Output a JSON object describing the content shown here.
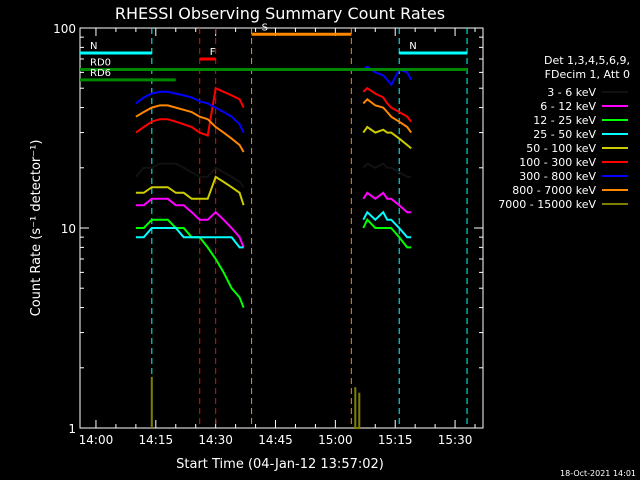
{
  "chart_data": {
    "type": "line",
    "title": "RHESSI Observing Summary Count Rates",
    "xlabel": "Start Time (04-Jan-12 13:57:02)",
    "ylabel": "Count Rate (s⁻¹ detector⁻¹)",
    "yscale": "log",
    "xlim": [
      "13:56",
      "15:37"
    ],
    "ylim": [
      1,
      100
    ],
    "x_ticks": [
      "14:00",
      "14:15",
      "14:30",
      "14:45",
      "15:00",
      "15:15",
      "15:30"
    ],
    "y_ticks": [
      "1",
      "10",
      "100"
    ],
    "timestamp": "18-Oct-2021 14:01",
    "legend_header": [
      "Det 1,3,4,5,6,9,",
      "FDecim 1, Att 0"
    ],
    "legend_position": "right",
    "series": [
      {
        "name": "3 - 6 keV",
        "color": "#000000",
        "segments": [
          {
            "x": [
              "14:10",
              "14:11",
              "14:12",
              "14:14",
              "14:16",
              "14:18",
              "14:20",
              "14:22",
              "14:24",
              "14:26",
              "14:28",
              "14:30",
              "14:32",
              "14:34",
              "14:36",
              "14:37"
            ],
            "y": [
              18,
              19,
              20,
              20,
              21,
              21,
              21,
              20,
              19,
              18,
              18,
              20,
              19,
              18,
              17,
              16
            ]
          },
          {
            "x": [
              "15:07",
              "15:08",
              "15:10",
              "15:12",
              "15:13",
              "15:14",
              "15:16",
              "15:18",
              "15:19"
            ],
            "y": [
              20,
              21,
              20,
              21,
              20,
              20,
              19,
              18,
              18
            ]
          }
        ]
      },
      {
        "name": "6 - 12 keV",
        "color": "#ff00ff",
        "segments": [
          {
            "x": [
              "14:10",
              "14:12",
              "14:14",
              "14:16",
              "14:18",
              "14:20",
              "14:22",
              "14:24",
              "14:26",
              "14:28",
              "14:30",
              "14:32",
              "14:34",
              "14:36",
              "14:37"
            ],
            "y": [
              13,
              13,
              14,
              14,
              14,
              13,
              13,
              12,
              11,
              11,
              12,
              11,
              10,
              9,
              8
            ]
          },
          {
            "x": [
              "15:07",
              "15:08",
              "15:10",
              "15:12",
              "15:13",
              "15:14",
              "15:16",
              "15:18",
              "15:19"
            ],
            "y": [
              14,
              15,
              14,
              15,
              14,
              14,
              13,
              12,
              12
            ]
          }
        ]
      },
      {
        "name": "12 - 25 keV",
        "color": "#00ff00",
        "segments": [
          {
            "x": [
              "14:10",
              "14:12",
              "14:14",
              "14:16",
              "14:18",
              "14:20",
              "14:22",
              "14:24",
              "14:26",
              "14:28",
              "14:30",
              "14:32",
              "14:34",
              "14:36",
              "14:37"
            ],
            "y": [
              10,
              10,
              11,
              11,
              11,
              10,
              10,
              9,
              9,
              8,
              7,
              6,
              5,
              4.5,
              4
            ]
          },
          {
            "x": [
              "15:07",
              "15:08",
              "15:10",
              "15:12",
              "15:13",
              "15:14",
              "15:16",
              "15:18",
              "15:19"
            ],
            "y": [
              10,
              11,
              10,
              10,
              10,
              10,
              9,
              8,
              8
            ]
          }
        ]
      },
      {
        "name": "25 - 50 keV",
        "color": "#00ffff",
        "segments": [
          {
            "x": [
              "14:10",
              "14:12",
              "14:14",
              "14:16",
              "14:18",
              "14:20",
              "14:22",
              "14:24",
              "14:26",
              "14:28",
              "14:30",
              "14:32",
              "14:34",
              "14:36",
              "14:37"
            ],
            "y": [
              9,
              9,
              10,
              10,
              10,
              10,
              9,
              9,
              9,
              9,
              9,
              9,
              9,
              8,
              8
            ]
          },
          {
            "x": [
              "15:07",
              "15:08",
              "15:10",
              "15:12",
              "15:13",
              "15:14",
              "15:16",
              "15:18",
              "15:19"
            ],
            "y": [
              11,
              12,
              11,
              12,
              11,
              11,
              10,
              9,
              9
            ]
          }
        ]
      },
      {
        "name": "50 - 100 keV",
        "color": "#cccc00",
        "segments": [
          {
            "x": [
              "14:10",
              "14:12",
              "14:14",
              "14:16",
              "14:18",
              "14:20",
              "14:22",
              "14:24",
              "14:26",
              "14:28",
              "14:30",
              "14:32",
              "14:34",
              "14:36",
              "14:37"
            ],
            "y": [
              15,
              15,
              16,
              16,
              16,
              15,
              15,
              14,
              14,
              14,
              18,
              17,
              16,
              15,
              13
            ]
          },
          {
            "x": [
              "15:07",
              "15:08",
              "15:10",
              "15:12",
              "15:13",
              "15:14",
              "15:16",
              "15:18",
              "15:19"
            ],
            "y": [
              30,
              32,
              30,
              31,
              30,
              30,
              28,
              26,
              25
            ]
          }
        ]
      },
      {
        "name": "100 - 300 keV",
        "color": "#ff0000",
        "segments": [
          {
            "x": [
              "14:10",
              "14:12",
              "14:14",
              "14:16",
              "14:18",
              "14:20",
              "14:22",
              "14:24",
              "14:26",
              "14:28",
              "14:30",
              "14:32",
              "14:34",
              "14:36",
              "14:37"
            ],
            "y": [
              30,
              32,
              34,
              35,
              35,
              34,
              33,
              32,
              30,
              29,
              50,
              48,
              46,
              44,
              40
            ]
          },
          {
            "x": [
              "15:07",
              "15:08",
              "15:10",
              "15:12",
              "15:13",
              "15:14",
              "15:16",
              "15:18",
              "15:19"
            ],
            "y": [
              48,
              50,
              47,
              45,
              42,
              40,
              38,
              36,
              34
            ]
          }
        ]
      },
      {
        "name": "300 - 800 keV",
        "color": "#0000ff",
        "segments": [
          {
            "x": [
              "14:10",
              "14:12",
              "14:14",
              "14:16",
              "14:18",
              "14:20",
              "14:22",
              "14:24",
              "14:26",
              "14:28",
              "14:30",
              "14:32",
              "14:34",
              "14:36",
              "14:37"
            ],
            "y": [
              42,
              45,
              47,
              48,
              48,
              47,
              46,
              45,
              43,
              42,
              40,
              38,
              36,
              33,
              30
            ]
          },
          {
            "x": [
              "15:07",
              "15:08",
              "15:10",
              "15:12",
              "15:13",
              "15:14",
              "15:16",
              "15:18",
              "15:19"
            ],
            "y": [
              62,
              64,
              60,
              58,
              55,
              52,
              62,
              60,
              55
            ]
          }
        ]
      },
      {
        "name": "800 - 7000 keV",
        "color": "#ff8800",
        "segments": [
          {
            "x": [
              "14:10",
              "14:12",
              "14:14",
              "14:16",
              "14:18",
              "14:20",
              "14:22",
              "14:24",
              "14:26",
              "14:28",
              "14:30",
              "14:32",
              "14:34",
              "14:36",
              "14:37"
            ],
            "y": [
              36,
              38,
              40,
              41,
              41,
              40,
              39,
              38,
              36,
              35,
              32,
              30,
              28,
              26,
              24
            ]
          },
          {
            "x": [
              "15:07",
              "15:08",
              "15:10",
              "15:12",
              "15:13",
              "15:14",
              "15:16",
              "15:18",
              "15:19"
            ],
            "y": [
              42,
              44,
              41,
              40,
              38,
              36,
              34,
              32,
              30
            ]
          }
        ]
      },
      {
        "name": "7000 - 15000 keV",
        "color": "#808000",
        "segments": [
          {
            "x": [
              "14:14",
              "14:14",
              "14:14"
            ],
            "y": [
              1,
              1.8,
              1
            ]
          },
          {
            "x": [
              "15:05",
              "15:05",
              "15:05",
              "15:06",
              "15:06"
            ],
            "y": [
              1,
              1.6,
              1,
              1,
              1.5
            ]
          }
        ]
      }
    ],
    "flags": [
      {
        "label": "N",
        "color": "#00ffff",
        "x": [
          "13:56",
          "14:14"
        ],
        "y": 75
      },
      {
        "label": "N",
        "color": "#00ffff",
        "x": [
          "15:16",
          "15:33"
        ],
        "y": 75
      },
      {
        "label": "RD0",
        "color": "#008800",
        "x": [
          "13:56",
          "15:33"
        ],
        "y": 62
      },
      {
        "label": "RD6",
        "color": "#008800",
        "x": [
          "13:56",
          "14:20"
        ],
        "y": 55
      },
      {
        "label": "F",
        "color": "#ff0000",
        "x": [
          "14:26",
          "14:30"
        ],
        "y": 70
      },
      {
        "label": "S",
        "color": "#ff8800",
        "x": [
          "14:39",
          "15:04"
        ],
        "y": 93
      }
    ]
  }
}
